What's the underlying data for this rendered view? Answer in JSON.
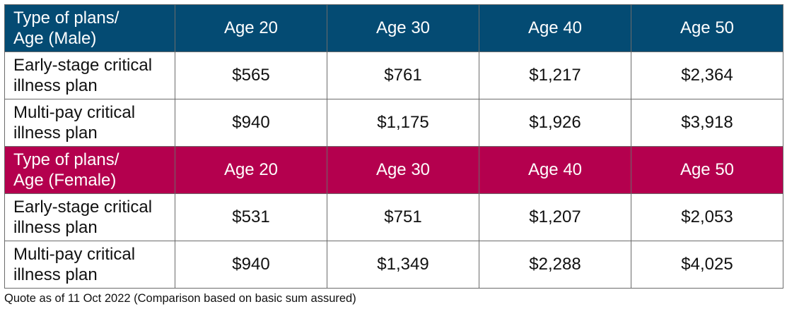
{
  "male_section": {
    "header": {
      "label_line1": "Type of plans/",
      "label_line2": "Age (Male)",
      "ages": [
        "Age 20",
        "Age 30",
        "Age 40",
        "Age 50"
      ]
    },
    "rows": [
      {
        "plan_line1": "Early-stage critical",
        "plan_line2": "illness plan",
        "values": [
          "$565",
          "$761",
          "$1,217",
          "$2,364"
        ]
      },
      {
        "plan_line1": "Multi-pay critical",
        "plan_line2": "illness plan",
        "values": [
          "$940",
          "$1,175",
          "$1,926",
          "$3,918"
        ]
      }
    ]
  },
  "female_section": {
    "header": {
      "label_line1": "Type of plans/",
      "label_line2": "Age (Female)",
      "ages": [
        "Age 20",
        "Age 30",
        "Age 40",
        "Age 50"
      ]
    },
    "rows": [
      {
        "plan_line1": "Early-stage critical",
        "plan_line2": "illness plan",
        "values": [
          "$531",
          "$751",
          "$1,207",
          "$2,053"
        ]
      },
      {
        "plan_line1": "Multi-pay critical",
        "plan_line2": "illness plan",
        "values": [
          "$940",
          "$1,349",
          "$2,288",
          "$4,025"
        ]
      }
    ]
  },
  "colors": {
    "male_header_bg": "#044b73",
    "female_header_bg": "#b4004e",
    "header_text": "#ffffff"
  },
  "footnote": "Quote as of 11 Oct 2022 (Comparison based on basic sum assured)"
}
